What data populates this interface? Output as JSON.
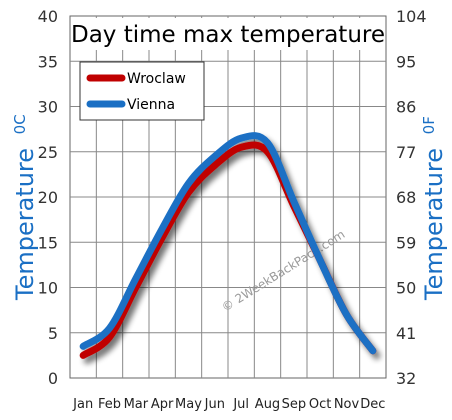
{
  "chart_data": {
    "type": "line",
    "title": "Day time max temperature",
    "categories": [
      "Jan",
      "Feb",
      "Mar",
      "Apr",
      "May",
      "Jun",
      "Jul",
      "Aug",
      "Sep",
      "Oct",
      "Nov",
      "Dec"
    ],
    "series": [
      {
        "name": "Wroclaw",
        "color": "#c00000",
        "values": [
          2.5,
          4.5,
          10,
          15.5,
          20.5,
          23.5,
          25.5,
          25,
          19,
          13,
          7,
          3
        ]
      },
      {
        "name": "Vienna",
        "color": "#1a6fc4",
        "values": [
          3.5,
          5.5,
          11,
          16.5,
          21.5,
          24.5,
          26.5,
          26,
          19.5,
          13,
          7,
          3
        ]
      }
    ],
    "ylabel": "Temperature",
    "ylabel_unit": "0C",
    "y2label": "Temperature",
    "y2label_unit": "0F",
    "ylim": [
      0,
      40
    ],
    "yticks": [
      "0",
      "5",
      "10",
      "15",
      "20",
      "25",
      "30",
      "35",
      "40"
    ],
    "y2ticks": [
      "32",
      "41",
      "50",
      "59",
      "68",
      "77",
      "86",
      "95",
      "104"
    ],
    "grid": true,
    "legend_position": "top-left",
    "axis_title_color": "#1a6fc4",
    "watermark": "© 2WeekBackPack.com"
  }
}
